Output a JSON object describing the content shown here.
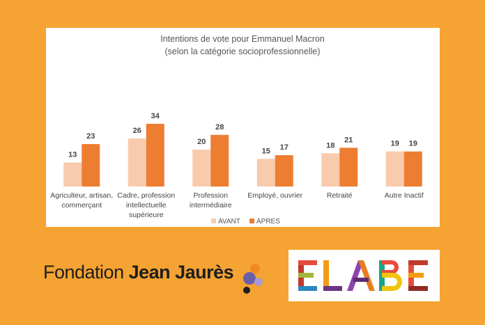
{
  "chart_data": {
    "type": "bar",
    "title": "Intentions de vote pour Emmanuel Macron",
    "subtitle": "(selon la catégorie socioprofessionnelle)",
    "categories": [
      [
        "Agriculteur, artisan,",
        "commerçant"
      ],
      [
        "Cadre, profession",
        "intellectuelle",
        "supérieure"
      ],
      [
        "Profession",
        "intermédiaire"
      ],
      [
        "Employé, ouvrier"
      ],
      [
        "Retraité"
      ],
      [
        "Autre Inactif"
      ]
    ],
    "series": [
      {
        "name": "AVANT",
        "values": [
          13,
          26,
          20,
          15,
          18,
          19
        ],
        "color": "#f8cbad"
      },
      {
        "name": "APRES",
        "values": [
          23,
          34,
          28,
          17,
          21,
          19
        ],
        "color": "#ed7d31"
      }
    ],
    "ylim": [
      0,
      36
    ],
    "grid": false,
    "legend_position": "bottom"
  },
  "logos": {
    "fondation_light": "Fondation ",
    "fondation_bold": "Jean Jaurès",
    "elabe": "ELABE"
  },
  "colors": {
    "background": "#f5a332",
    "panel": "#ffffff"
  }
}
